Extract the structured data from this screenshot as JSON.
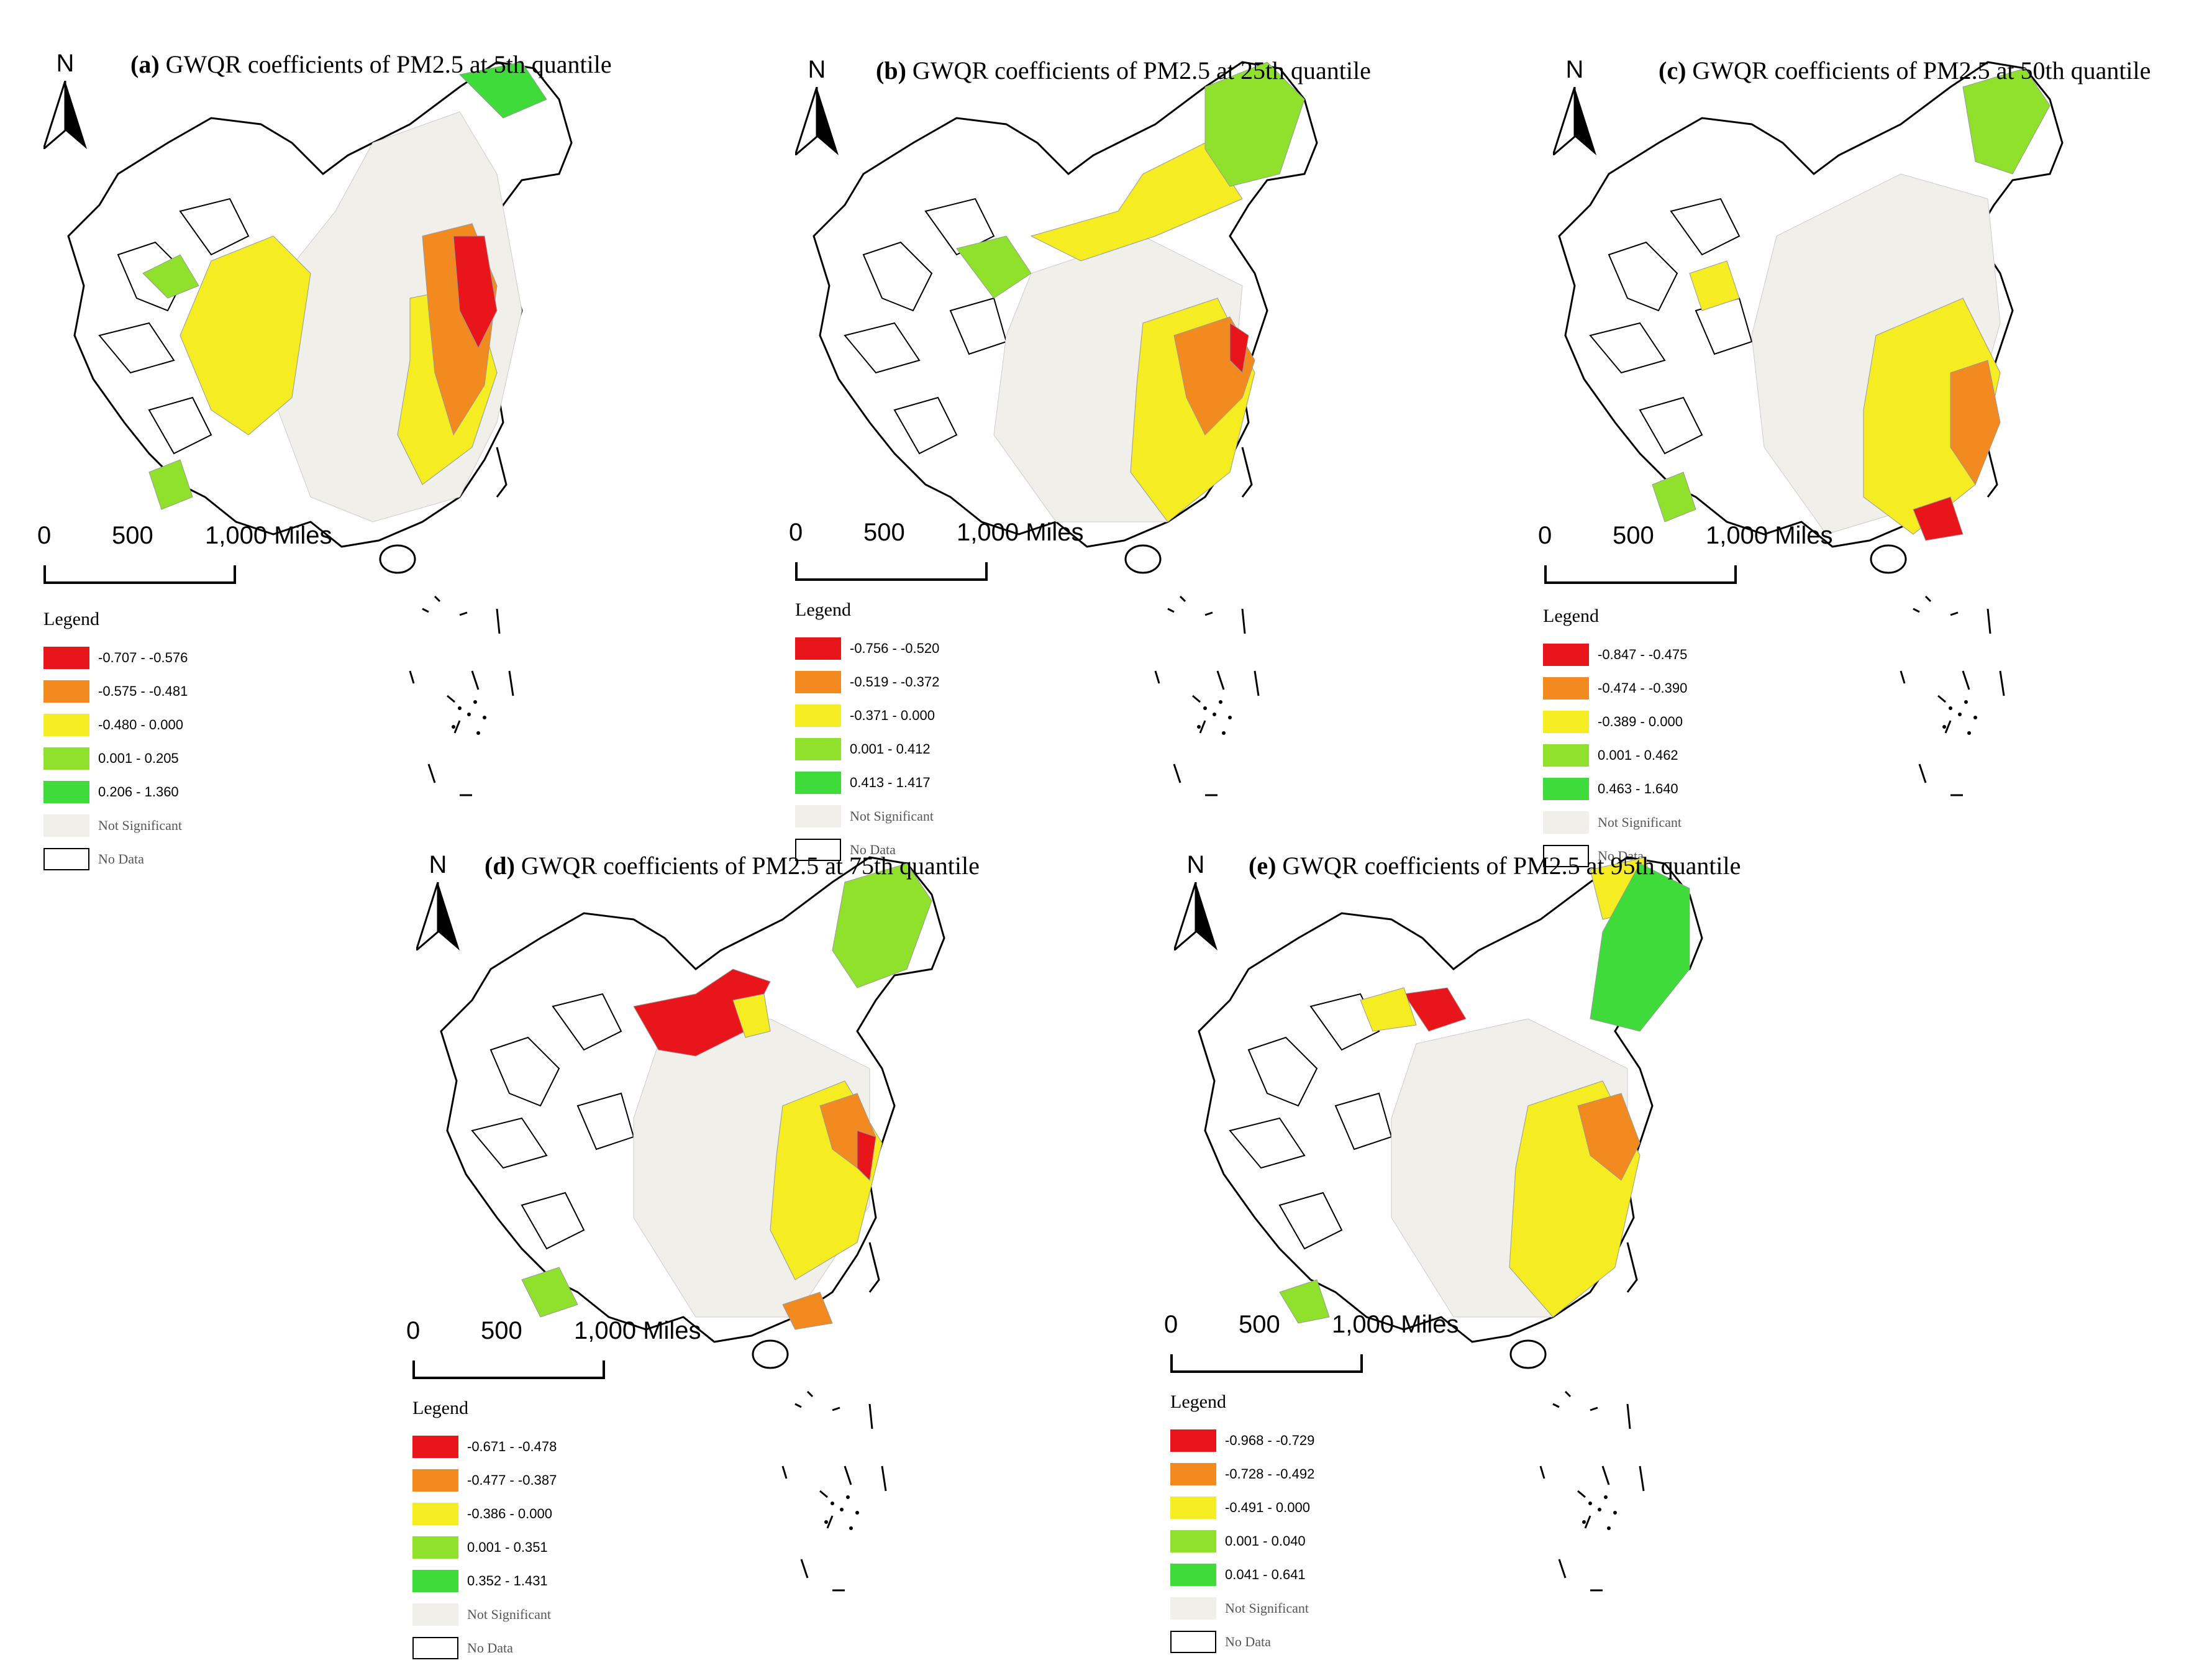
{
  "panels": [
    {
      "label": "(a)",
      "title": "GWQR coefficients of PM2.5 at 5th quantile",
      "legend": [
        "-0.707 - -0.576",
        "-0.575 - -0.481",
        "-0.480 - 0.000",
        "0.001 - 0.205",
        "0.206 - 1.360"
      ]
    },
    {
      "label": "(b)",
      "title": "GWQR coefficients of PM2.5 at 25th quantile",
      "legend": [
        "-0.756 - -0.520",
        "-0.519 - -0.372",
        "-0.371 - 0.000",
        "0.001 - 0.412",
        "0.413 - 1.417"
      ]
    },
    {
      "label": "(c)",
      "title": "GWQR coefficients of PM2.5 at 50th quantile",
      "legend": [
        "-0.847 - -0.475",
        "-0.474 - -0.390",
        "-0.389 - 0.000",
        "0.001 - 0.462",
        "0.463 - 1.640"
      ]
    },
    {
      "label": "(d)",
      "title": "GWQR coefficients of PM2.5 at 75th quantile",
      "legend": [
        "-0.671 - -0.478",
        "-0.477 - -0.387",
        "-0.386 - 0.000",
        "0.001 - 0.351",
        "0.352 - 1.431"
      ]
    },
    {
      "label": "(e)",
      "title": "GWQR coefficients of PM2.5 at 95th quantile",
      "legend": [
        "-0.968 - -0.729",
        "-0.728 - -0.492",
        "-0.491 - 0.000",
        "0.001 - 0.040",
        "0.041 - 0.641"
      ]
    }
  ],
  "common": {
    "north": "N",
    "scale": {
      "zero": "0",
      "mid": "500",
      "end": "1,000 Miles"
    },
    "legend_title": "Legend",
    "not_significant": "Not Significant",
    "no_data": "No Data"
  },
  "colors": {
    "class1": "#e8161a",
    "class2": "#f28a1f",
    "class3": "#f5ec22",
    "class4": "#8fe12b",
    "class5": "#3fdb3a",
    "not_significant": "#f0efea",
    "no_data": "#ffffff"
  }
}
